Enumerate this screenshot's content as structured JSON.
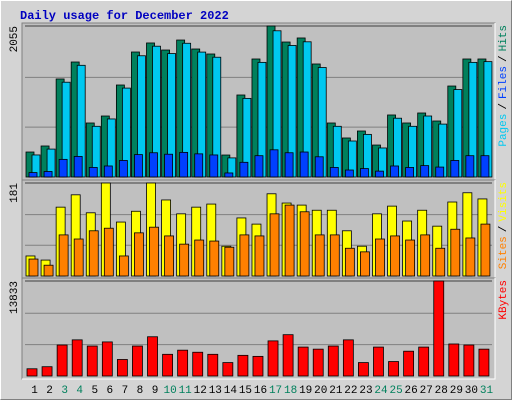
{
  "chart_data": [
    {
      "type": "bar",
      "title": "Daily usage for December 2022",
      "separator": "/",
      "ylim": [
        0,
        2055
      ],
      "yticks": [
        2055
      ],
      "series": [
        {
          "name": "Pages",
          "color": "#00c8f0",
          "values": [
            300,
            380,
            1290,
            1520,
            690,
            790,
            1210,
            1650,
            1780,
            1680,
            1820,
            1700,
            1630,
            260,
            1070,
            1560,
            1990,
            1790,
            1840,
            1490,
            690,
            490,
            580,
            395,
            800,
            690,
            830,
            720,
            1190,
            1560,
            1570
          ]
        },
        {
          "name": "Files",
          "color": "#0040ff",
          "values": [
            60,
            75,
            240,
            280,
            130,
            150,
            225,
            305,
            330,
            310,
            335,
            315,
            300,
            55,
            200,
            290,
            370,
            330,
            340,
            275,
            130,
            95,
            115,
            80,
            150,
            130,
            155,
            135,
            225,
            290,
            290
          ]
        },
        {
          "name": "Hits",
          "color": "#00805c",
          "values": [
            340,
            422,
            1334,
            1565,
            735,
            830,
            1252,
            1701,
            1824,
            1728,
            1864,
            1742,
            1674,
            299,
            1116,
            1606,
            2055,
            1837,
            1892,
            1538,
            735,
            531,
            626,
            435,
            844,
            735,
            871,
            762,
            1238,
            1606,
            1606
          ]
        }
      ]
    },
    {
      "type": "bar",
      "separator": "/",
      "ylim": [
        0,
        181
      ],
      "yticks": [
        181
      ],
      "series": [
        {
          "name": "Sites",
          "color": "#ff8000",
          "values": [
            33,
            21,
            80,
            72,
            88,
            93,
            39,
            84,
            95,
            78,
            62,
            70,
            68,
            56,
            80,
            78,
            121,
            138,
            125,
            80,
            80,
            54,
            47,
            72,
            78,
            70,
            80,
            54,
            91,
            74,
            101
          ]
        },
        {
          "name": "Visits",
          "color": "#ffff00",
          "values": [
            39,
            31,
            134,
            158,
            123,
            181,
            105,
            126,
            181,
            148,
            121,
            134,
            140,
            58,
            113,
            101,
            160,
            142,
            138,
            128,
            128,
            88,
            58,
            121,
            136,
            107,
            128,
            97,
            144,
            162,
            150
          ]
        }
      ]
    },
    {
      "type": "bar",
      "ylim": [
        0,
        13833
      ],
      "yticks": [
        13833
      ],
      "categories": [
        "1",
        "2",
        "3",
        "4",
        "5",
        "6",
        "7",
        "8",
        "9",
        "10",
        "11",
        "12",
        "13",
        "14",
        "15",
        "16",
        "17",
        "18",
        "19",
        "20",
        "21",
        "22",
        "23",
        "24",
        "25",
        "26",
        "27",
        "28",
        "29",
        "30",
        "31"
      ],
      "category_colors": [
        "#000000",
        "#000000",
        "#00805c",
        "#00805c",
        "#000000",
        "#000000",
        "#000000",
        "#000000",
        "#000000",
        "#00805c",
        "#00805c",
        "#000000",
        "#000000",
        "#000000",
        "#000000",
        "#000000",
        "#00805c",
        "#00805c",
        "#000000",
        "#000000",
        "#000000",
        "#000000",
        "#000000",
        "#00805c",
        "#00805c",
        "#000000",
        "#000000",
        "#000000",
        "#000000",
        "#000000",
        "#00805c"
      ],
      "series": [
        {
          "name": "KBytes",
          "color": "#ff0000",
          "values": [
            1053,
            1354,
            4512,
            5264,
            4362,
            4963,
            2406,
            4362,
            5715,
            3158,
            3760,
            3459,
            3158,
            1955,
            3008,
            2858,
            5114,
            6016,
            4211,
            3910,
            4362,
            5264,
            1955,
            4211,
            2106,
            3610,
            4211,
            13833,
            4662,
            4512,
            3910
          ]
        }
      ]
    }
  ]
}
